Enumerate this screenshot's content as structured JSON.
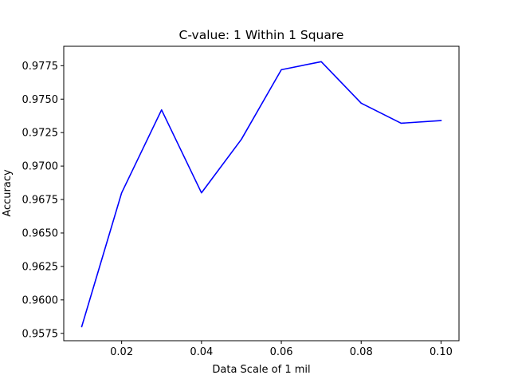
{
  "chart_data": {
    "type": "line",
    "title": "C-value: 1 Within 1 Square",
    "xlabel": "Data Scale of 1 mil",
    "ylabel": "Accuracy",
    "x": [
      0.01,
      0.02,
      0.03,
      0.04,
      0.05,
      0.06,
      0.07,
      0.08,
      0.09,
      0.1
    ],
    "series": [
      {
        "values": [
          0.958,
          0.968,
          0.9742,
          0.968,
          0.972,
          0.9772,
          0.9778,
          0.9747,
          0.9732,
          0.9734
        ],
        "color": "#0000ff"
      }
    ],
    "xlim": [
      0.0055,
      0.1045
    ],
    "ylim": [
      0.95695,
      0.97895
    ],
    "x_ticks": [
      0.02,
      0.04,
      0.06,
      0.08,
      0.1
    ],
    "x_tick_labels": [
      "0.02",
      "0.04",
      "0.06",
      "0.08",
      "0.10"
    ],
    "y_ticks": [
      0.9575,
      0.96,
      0.9625,
      0.965,
      0.9675,
      0.97,
      0.9725,
      0.975,
      0.9775
    ],
    "y_tick_labels": [
      "0.9575",
      "0.9600",
      "0.9625",
      "0.9650",
      "0.9675",
      "0.9700",
      "0.9725",
      "0.9750",
      "0.9775"
    ],
    "grid": false,
    "legend": "none"
  }
}
